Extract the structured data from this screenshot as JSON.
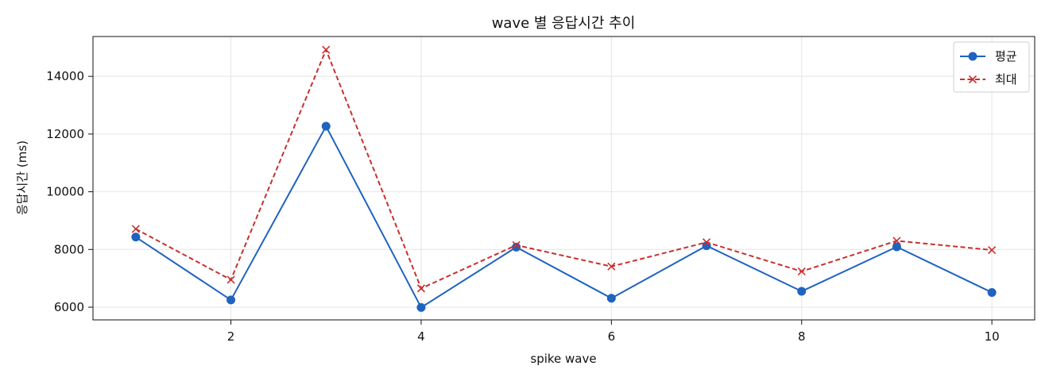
{
  "chart_data": {
    "type": "line",
    "title": "wave 별 응답시간 추이",
    "xlabel": "spike wave",
    "ylabel": "응답시간 (ms)",
    "x": [
      1,
      2,
      3,
      4,
      5,
      6,
      7,
      8,
      9,
      10
    ],
    "xlim": [
      0.55,
      10.45
    ],
    "ylim": [
      5560,
      15380
    ],
    "xticks": [
      2,
      4,
      6,
      8,
      10
    ],
    "yticks": [
      6000,
      8000,
      10000,
      12000,
      14000
    ],
    "grid": true,
    "legend_position": "top-right",
    "series": [
      {
        "name": "평균",
        "values": [
          8430,
          6250,
          12270,
          5990,
          8080,
          6310,
          8130,
          6550,
          8090,
          6510
        ],
        "color": "#1f63c0",
        "line_style": "solid",
        "marker": "circle"
      },
      {
        "name": "최대",
        "values": [
          8710,
          6950,
          14920,
          6650,
          8150,
          7410,
          8250,
          7240,
          8300,
          7980
        ],
        "color": "#c8302f",
        "line_style": "dashed",
        "marker": "x"
      }
    ]
  }
}
